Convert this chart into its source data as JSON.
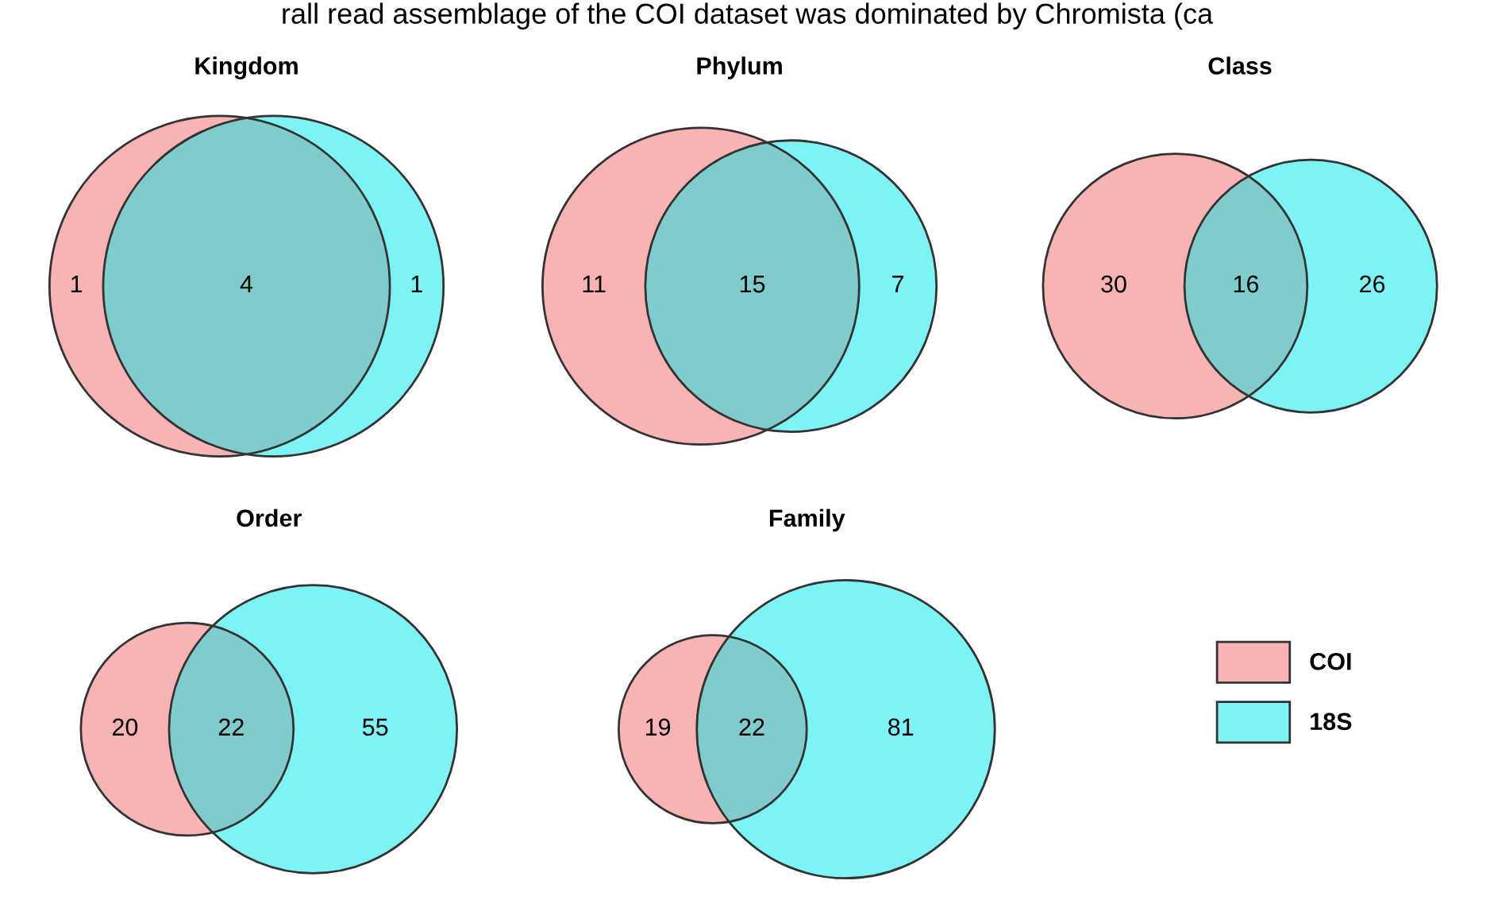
{
  "chart_data": [
    {
      "type": "other",
      "title": "Kingdom",
      "values": [
        1,
        4,
        1
      ],
      "data_labels": true,
      "colors": [
        "#f8b4b4",
        "#80cccc",
        "#7ef3f5"
      ],
      "annotations": [
        "rall read assemblage of the COI dataset was dominated by Chromista (ca"
      ]
    },
    {
      "type": "other",
      "title": "Phylum",
      "values": [
        11,
        15,
        7
      ],
      "data_labels": true,
      "colors": [
        "#f8b4b4",
        "#80cccc",
        "#7ef3f5"
      ]
    },
    {
      "type": "other",
      "title": "Class",
      "values": [
        30,
        16,
        26
      ],
      "data_labels": true,
      "colors": [
        "#f8b4b4",
        "#80cccc",
        "#7ef3f5"
      ]
    },
    {
      "type": "other",
      "title": "Order",
      "values": [
        20,
        22,
        55
      ],
      "data_labels": true,
      "colors": [
        "#f8b4b4",
        "#80cccc",
        "#7ef3f5"
      ]
    },
    {
      "type": "other",
      "title": "Family",
      "values": [
        19,
        22,
        81
      ],
      "data_labels": true,
      "colors": [
        "#f8b4b4",
        "#80cccc",
        "#7ef3f5"
      ]
    },
    {
      "type": "other",
      "legend": "left",
      "series": [
        {
          "name": "COI",
          "color": "#f8b4b4"
        },
        {
          "name": "18S",
          "color": "#7ef3f5"
        }
      ]
    }
  ]
}
